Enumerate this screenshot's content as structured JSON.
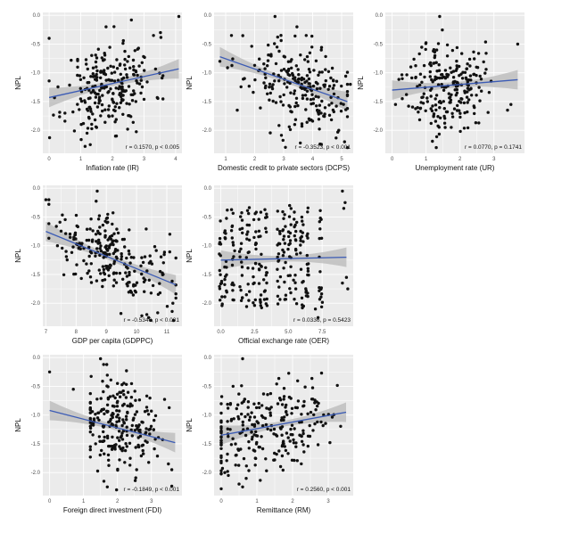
{
  "colors": {
    "panel_bg": "#ebebeb",
    "grid": "#ffffff",
    "point": "#111111",
    "fit_line": "#3b5bb5",
    "ci_band": "#b8b8b8"
  },
  "chart_data": [
    {
      "type": "scatter",
      "xlabel": "Inflation rate (IR)",
      "ylabel": "NPL",
      "annotation": "r = 0.1570, p < 0.005",
      "xlim": [
        -0.2,
        4.2
      ],
      "xticks": [
        0,
        1,
        2,
        3,
        4
      ],
      "xtick_labels": [
        "0",
        "1",
        "2",
        "3",
        "4"
      ],
      "ylim": [
        -2.4,
        0.05
      ],
      "yticks": [
        0,
        -0.5,
        -1,
        -1.5,
        -2
      ],
      "ytick_labels": [
        "0.0",
        "-0.5",
        "-1.0",
        "-1.5",
        "-2.0"
      ],
      "grid": true,
      "fit": {
        "x": [
          0,
          4.1
        ],
        "y": [
          -1.43,
          -0.93
        ]
      },
      "points": [
        [
          4.1,
          -0.02
        ],
        [
          0,
          -0.4
        ],
        [
          0.5,
          -1.7
        ],
        [
          1.2,
          -2.05
        ],
        [
          1.3,
          -2.25
        ],
        [
          1.5,
          -1.95
        ],
        [
          2.1,
          -2.1
        ],
        [
          2.0,
          -1.75
        ],
        [
          0.9,
          -0.9
        ],
        [
          3.3,
          -0.35
        ],
        [
          3.6,
          -1.05
        ],
        [
          2.6,
          -0.08
        ],
        [
          1.8,
          -0.2
        ]
      ],
      "cloud": {
        "n": 240,
        "seed": 11,
        "x": [
          0,
          3.6
        ],
        "xc": 1.9,
        "xs": 0.7,
        "yc": -1.25,
        "ys": 0.38,
        "slope": 0.12,
        "yr": [
          -2.3,
          -0.05
        ]
      }
    },
    {
      "type": "scatter",
      "xlabel": "Domestic credit to private sectors (DCPS)",
      "ylabel": "NPL",
      "annotation": "r = -0.3523, p < 0.001",
      "xlim": [
        0.6,
        5.4
      ],
      "xticks": [
        1,
        2,
        3,
        4,
        5
      ],
      "xtick_labels": [
        "1",
        "2",
        "3",
        "4",
        "5"
      ],
      "ylim": [
        -2.4,
        0.05
      ],
      "yticks": [
        0,
        -0.5,
        -1,
        -1.5,
        -2
      ],
      "ytick_labels": [
        "0.0",
        "-0.5",
        "-1.0",
        "-1.5",
        "-2.0"
      ],
      "grid": true,
      "fit": {
        "x": [
          0.8,
          5.2
        ],
        "y": [
          -0.72,
          -1.5
        ]
      },
      "points": [
        [
          0.8,
          -0.8
        ],
        [
          1.2,
          -0.35
        ],
        [
          2.7,
          -0.02
        ],
        [
          1.4,
          -1.65
        ],
        [
          5.1,
          -2.2
        ],
        [
          5.2,
          -2.3
        ],
        [
          5.3,
          -1.2
        ],
        [
          5.2,
          -1.2
        ],
        [
          4.9,
          -2.0
        ]
      ],
      "cloud": {
        "n": 230,
        "seed": 23,
        "x": [
          1.0,
          5.2
        ],
        "xc": 3.5,
        "xs": 0.9,
        "yc": -1.25,
        "ys": 0.38,
        "slope": -0.18,
        "yr": [
          -2.3,
          -0.2
        ]
      }
    },
    {
      "type": "scatter",
      "xlabel": "Unemployment rate (UR)",
      "ylabel": "NPL",
      "annotation": "r = 0.0770, p = 0.1741",
      "xlim": [
        -0.2,
        3.9
      ],
      "xticks": [
        0,
        1,
        2,
        3
      ],
      "xtick_labels": [
        "0",
        "1",
        "2",
        "3"
      ],
      "ylim": [
        -2.4,
        0.05
      ],
      "yticks": [
        0,
        -0.5,
        -1,
        -1.5,
        -2
      ],
      "ytick_labels": [
        "0.0",
        "-0.5",
        "-1.0",
        "-1.5",
        "-2.0"
      ],
      "grid": true,
      "fit": {
        "x": [
          0,
          3.7
        ],
        "y": [
          -1.3,
          -1.12
        ]
      },
      "points": [
        [
          1.4,
          -0.02
        ],
        [
          3.7,
          -0.5
        ],
        [
          0.1,
          -1.55
        ],
        [
          3.4,
          -1.65
        ],
        [
          3.5,
          -1.55
        ],
        [
          0.3,
          -1.45
        ],
        [
          1.3,
          -2.3
        ]
      ],
      "cloud": {
        "n": 230,
        "seed": 37,
        "x": [
          0.2,
          3.3
        ],
        "xc": 1.6,
        "xs": 0.55,
        "yc": -1.22,
        "ys": 0.4,
        "slope": 0.04,
        "yr": [
          -2.3,
          -0.1
        ]
      }
    },
    {
      "type": "scatter",
      "xlabel": "GDP per capita (GDPPC)",
      "ylabel": "NPL",
      "annotation": "r = -0.5346, p < 0.001",
      "xlim": [
        6.9,
        11.5
      ],
      "xticks": [
        7,
        8,
        9,
        10,
        11
      ],
      "xtick_labels": [
        "7",
        "8",
        "9",
        "10",
        "11"
      ],
      "ylim": [
        -2.4,
        0.05
      ],
      "yticks": [
        0,
        -0.5,
        -1,
        -1.5,
        -2
      ],
      "ytick_labels": [
        "0.0",
        "-0.5",
        "-1.0",
        "-1.5",
        "-2.0"
      ],
      "grid": true,
      "fit": {
        "x": [
          7,
          11.3
        ],
        "y": [
          -0.75,
          -1.68
        ]
      },
      "points": [
        [
          7,
          -0.2
        ],
        [
          7.1,
          -0.2
        ],
        [
          8.7,
          -0.05
        ],
        [
          11.2,
          -2.0
        ],
        [
          10.4,
          -2.25
        ],
        [
          11.1,
          -0.8
        ]
      ],
      "cloud": {
        "n": 240,
        "seed": 41,
        "x": [
          7.1,
          11.3
        ],
        "xc": 9.2,
        "xs": 1.0,
        "yc": -1.2,
        "ys": 0.32,
        "slope": -0.22,
        "yr": [
          -2.3,
          -0.1
        ]
      }
    },
    {
      "type": "scatter",
      "xlabel": "Official exchange rate (OER)",
      "ylabel": "NPL",
      "annotation": "r = 0.0336, p = 0.5423",
      "xlim": [
        -0.5,
        9.8
      ],
      "xticks": [
        0,
        2.5,
        5,
        7.5
      ],
      "xtick_labels": [
        "0.0",
        "2.5",
        "5.0",
        "7.5"
      ],
      "ylim": [
        -2.4,
        0.05
      ],
      "yticks": [
        0,
        -0.5,
        -1,
        -1.5,
        -2
      ],
      "ytick_labels": [
        "0.0",
        "-0.5",
        "-1.0",
        "-1.5",
        "-2.0"
      ],
      "grid": true,
      "fit": {
        "x": [
          0,
          9.3
        ],
        "y": [
          -1.25,
          -1.2
        ]
      },
      "points": [
        [
          9,
          -0.05
        ],
        [
          9.2,
          -0.25
        ],
        [
          9.1,
          -0.35
        ],
        [
          9.3,
          -1.55
        ],
        [
          9.0,
          -1.65
        ],
        [
          9.4,
          -1.75
        ],
        [
          7.0,
          -2.1
        ],
        [
          7.2,
          -2.25
        ]
      ],
      "columns": {
        "seed": 53,
        "xs": [
          0,
          0.4,
          0.9,
          1.5,
          2.0,
          2.5,
          2.9,
          3.3,
          4.3,
          4.7,
          5.1,
          5.5,
          6.0,
          6.4,
          7.4
        ],
        "per": 18,
        "yr": [
          -2.1,
          -0.3
        ]
      }
    },
    {
      "type": "scatter",
      "xlabel": "Foreign direct investment (FDI)",
      "ylabel": "NPL",
      "annotation": "r = -0.1849, p < 0.001",
      "xlim": [
        -0.2,
        3.9
      ],
      "xticks": [
        0,
        1,
        2,
        3
      ],
      "xtick_labels": [
        "0",
        "1",
        "2",
        "3"
      ],
      "ylim": [
        -2.4,
        0.05
      ],
      "yticks": [
        0,
        -0.5,
        -1,
        -1.5,
        -2
      ],
      "ytick_labels": [
        "0.0",
        "-0.5",
        "-1.0",
        "-1.5",
        "-2.0"
      ],
      "grid": true,
      "fit": {
        "x": [
          0,
          3.7
        ],
        "y": [
          -0.92,
          -1.48
        ]
      },
      "points": [
        [
          0,
          -0.25
        ],
        [
          0.7,
          -0.55
        ],
        [
          1.5,
          -0.02
        ],
        [
          1.6,
          -2.15
        ],
        [
          1.7,
          -2.25
        ],
        [
          3.5,
          -1.85
        ],
        [
          3.6,
          -1.95
        ]
      ],
      "cloud": {
        "n": 230,
        "seed": 67,
        "x": [
          1.2,
          3.6
        ],
        "xc": 2.0,
        "xs": 0.55,
        "yc": -1.22,
        "ys": 0.4,
        "slope": -0.1,
        "yr": [
          -2.3,
          -0.1
        ]
      }
    },
    {
      "type": "scatter",
      "xlabel": "Remittance (RM)",
      "ylabel": "NPL",
      "annotation": "r = 0.2560, p < 0.001",
      "xlim": [
        -0.2,
        3.7
      ],
      "xticks": [
        0,
        1,
        2,
        3
      ],
      "xtick_labels": [
        "0",
        "1",
        "2",
        "3"
      ],
      "ylim": [
        -2.4,
        0.05
      ],
      "yticks": [
        0,
        -0.5,
        -1,
        -1.5,
        -2
      ],
      "ytick_labels": [
        "0.0",
        "-0.5",
        "-1.0",
        "-1.5",
        "-2.0"
      ],
      "grid": true,
      "fit": {
        "x": [
          0,
          3.5
        ],
        "y": [
          -1.35,
          -0.95
        ]
      },
      "points": [
        [
          0.6,
          -0.02
        ],
        [
          0.5,
          -2.2
        ],
        [
          0.6,
          -2.25
        ],
        [
          0.7,
          -2.1
        ],
        [
          0.1,
          -2.0
        ],
        [
          0.2,
          -2.05
        ]
      ],
      "cloud": {
        "n": 250,
        "seed": 79,
        "x": [
          0,
          3.5
        ],
        "xc": 1.2,
        "xs": 1.0,
        "yc": -1.2,
        "ys": 0.38,
        "slope": 0.12,
        "yr": [
          -2.3,
          -0.1
        ]
      }
    }
  ]
}
